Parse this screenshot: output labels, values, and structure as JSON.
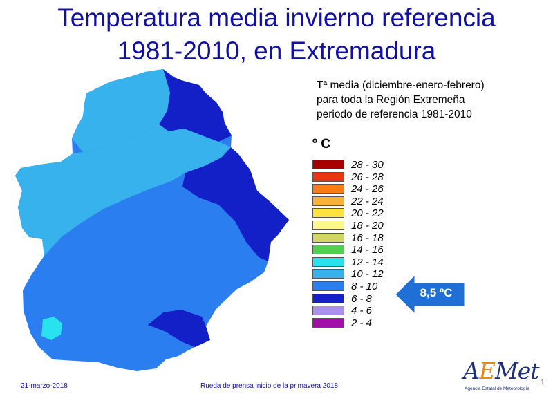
{
  "title": {
    "line1": "Temperatura media invierno referencia",
    "line2": "1981-2010, en Extremadura"
  },
  "description": {
    "line1": "Tª media (diciembre-enero-febrero)",
    "line2": "para toda la Región Extremeña",
    "line3": "periodo de referencia 1981-2010"
  },
  "legend": {
    "unit": "º C",
    "items": [
      {
        "label": "28 - 30",
        "color": "#a80000"
      },
      {
        "label": "26 - 28",
        "color": "#e83410"
      },
      {
        "label": "24 - 26",
        "color": "#f77e18"
      },
      {
        "label": "22 - 24",
        "color": "#f8b23a"
      },
      {
        "label": "20 - 22",
        "color": "#fbe23e"
      },
      {
        "label": "18 - 20",
        "color": "#fcf88a"
      },
      {
        "label": "16 - 18",
        "color": "#cfd664"
      },
      {
        "label": "14 - 16",
        "color": "#4ed24e"
      },
      {
        "label": "12 - 14",
        "color": "#28e2ee"
      },
      {
        "label": "10 - 12",
        "color": "#38b2ec"
      },
      {
        "label": "8 - 10",
        "color": "#2a7ef0"
      },
      {
        "label": "6 - 8",
        "color": "#1320c8"
      },
      {
        "label": "4 - 6",
        "color": "#a98ef0"
      },
      {
        "label": "2 - 4",
        "color": "#a010a8"
      }
    ]
  },
  "highlight": {
    "value": "8,5 ºC",
    "color": "#1f6fd6"
  },
  "map": {
    "colors": {
      "base": "#2a7ef0",
      "cold": "#1320c8",
      "mild": "#38b2ec",
      "warm": "#28e2ee"
    }
  },
  "footer": {
    "date": "21-marzo-2018",
    "event": "Rueda de prensa inicio de la primavera 2018",
    "logo": "AEMet",
    "logo_subtitle": "Agencia Estatal de Meteorología"
  }
}
